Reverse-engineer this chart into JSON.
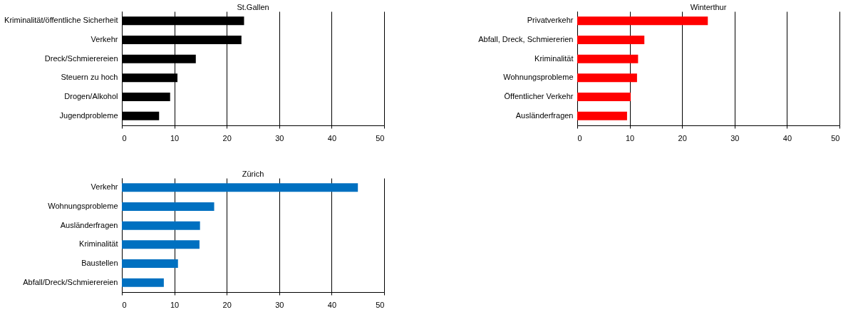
{
  "chart_data": [
    {
      "type": "bar",
      "orientation": "horizontal",
      "title": "St.Gallen",
      "categories": [
        "Kriminalität/öffentliche Sicherheit",
        "Verkehr",
        "Dreck/Schmierereien",
        "Steuern zu hoch",
        "Drogen/Alkohol",
        "Jugendprobleme"
      ],
      "values": [
        23.3,
        22.8,
        14.1,
        10.6,
        9.2,
        7.1
      ],
      "color": "#000000",
      "xlim": [
        0,
        50
      ],
      "xticks": [
        0,
        10,
        20,
        30,
        40,
        50
      ],
      "grid": "x"
    },
    {
      "type": "bar",
      "orientation": "horizontal",
      "title": "Winterthur",
      "categories": [
        "Privatverkehr",
        "Abfall, Dreck, Schmiererien",
        "Kriminalität",
        "Wohnungsprobleme",
        "Öffentlicher Verkehr",
        "Ausländerfragen"
      ],
      "values": [
        24.9,
        12.8,
        11.6,
        11.4,
        10.2,
        9.5
      ],
      "color": "#ff0000",
      "xlim": [
        0,
        50
      ],
      "xticks": [
        0,
        10,
        20,
        30,
        40,
        50
      ],
      "grid": "x"
    },
    {
      "type": "bar",
      "orientation": "horizontal",
      "title": "Zürich",
      "categories": [
        "Verkehr",
        "Wohnungsprobleme",
        "Ausländerfragen",
        "Kriminalität",
        "Baustellen",
        "Abfall/Dreck/Schmierereien"
      ],
      "values": [
        45,
        17.6,
        14.9,
        14.8,
        10.7,
        8.0
      ],
      "color": "#0070c0",
      "xlim": [
        0,
        50
      ],
      "xticks": [
        0,
        10,
        20,
        30,
        40,
        50
      ],
      "grid": "x"
    }
  ]
}
